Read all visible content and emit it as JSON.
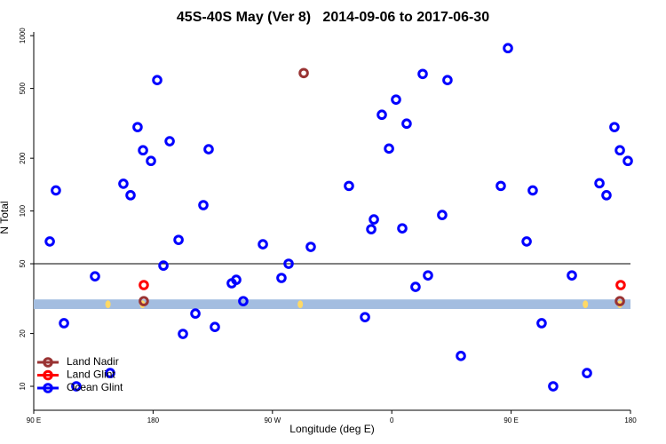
{
  "chart_data": {
    "type": "scatter",
    "title": "45S-40S May (Ver 8)   2014-09-06 to 2017-06-30",
    "x_label": "Longitude (deg E)",
    "y_label": "N Total",
    "xlim": [
      90,
      540
    ],
    "xticks": [
      {
        "value": 90,
        "label": "90 E"
      },
      {
        "value": 180,
        "label": "180"
      },
      {
        "value": 270,
        "label": "90 W"
      },
      {
        "value": 360,
        "label": "0"
      },
      {
        "value": 450,
        "label": "90 E"
      },
      {
        "value": 540,
        "label": "180"
      }
    ],
    "ylim": [
      7.3,
      1050
    ],
    "yticks": [
      10,
      20,
      50,
      100,
      200,
      500,
      1000
    ],
    "log_y": true,
    "hline": 50,
    "band": {
      "range": [
        27.6,
        31.3
      ],
      "color": "#a3bde0"
    },
    "band_markers_x": [
      146,
      172,
      291,
      506,
      532
    ],
    "band_marker_color": "#ffd966",
    "legend": "bottom-left",
    "series": [
      {
        "name": "Land Nadir",
        "color": "#993333",
        "x": [
          173,
          293.6,
          532
        ],
        "values": [
          30.6,
          612,
          30.6
        ]
      },
      {
        "name": "Land Glint",
        "color": "#ff0000",
        "x": [
          173,
          532.6
        ],
        "values": [
          37.8,
          37.8
        ]
      },
      {
        "name": "Ocean Glint",
        "color": "#0000ff",
        "x": [
          102.1,
          106.7,
          112.8,
          122.1,
          136.2,
          147.6,
          157.6,
          163,
          168.3,
          172.4,
          178.4,
          183.1,
          187.8,
          192.5,
          199.2,
          202.5,
          211.9,
          217.9,
          221.9,
          226.6,
          239.3,
          242.7,
          248,
          262.8,
          276.8,
          282.2,
          298.9,
          327.7,
          339.8,
          344.5,
          346.5,
          352.5,
          357.9,
          363.2,
          367.9,
          371.2,
          377.9,
          383.3,
          387.3,
          398,
          402,
          412.1,
          442.2,
          447.6,
          461.7,
          466.3,
          473,
          481.7,
          495.8,
          507.2,
          516.6,
          521.9,
          527.9,
          532,
          538
        ],
        "values": [
          67,
          131,
          22.9,
          10,
          42.4,
          11.9,
          143,
          123,
          301,
          222,
          193,
          558,
          48.8,
          250,
          68.4,
          19.9,
          26,
          108,
          225,
          21.8,
          38.7,
          40.5,
          30.6,
          64.6,
          41.5,
          50,
          62.4,
          139,
          24.8,
          78.7,
          89.5,
          354,
          227,
          432,
          79.6,
          315,
          36.9,
          605,
          42.9,
          94.9,
          558,
          14.9,
          139,
          849,
          67,
          131,
          22.9,
          10,
          42.9,
          11.9,
          144,
          123,
          301,
          222,
          193
        ]
      }
    ]
  }
}
